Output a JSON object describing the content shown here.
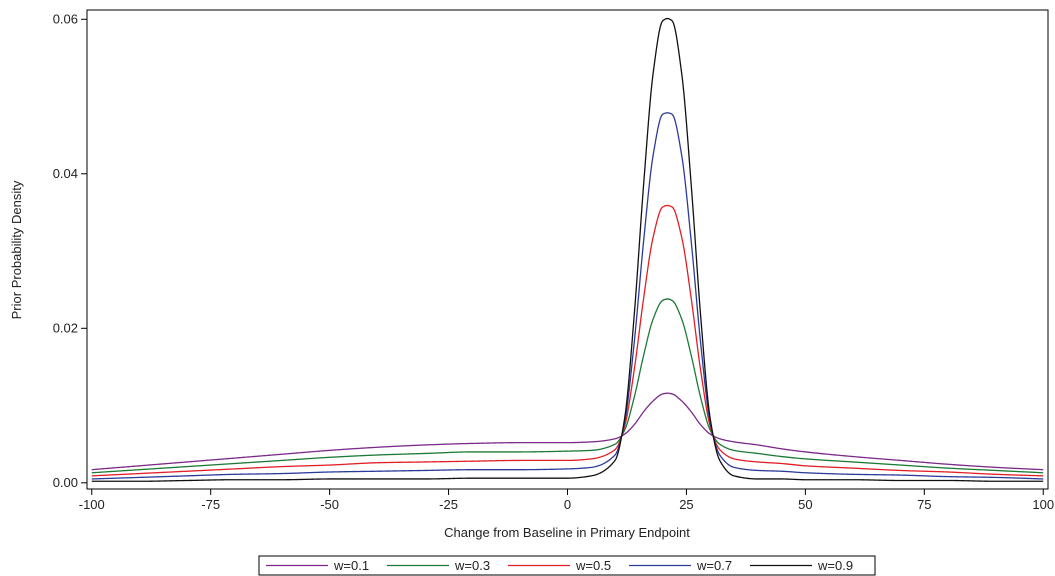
{
  "chart_data": {
    "type": "line",
    "title": "",
    "xlabel": "Change from Baseline in Primary Endpoint",
    "ylabel": "Prior Probability Density",
    "xlim": [
      -101,
      101
    ],
    "ylim": [
      -0.0008,
      0.0612
    ],
    "x_ticks": [
      -100,
      -75,
      -50,
      -25,
      0,
      25,
      50,
      75,
      100
    ],
    "x_tick_labels": [
      "-100",
      "-75",
      "-50",
      "-25",
      "0",
      "25",
      "50",
      "75",
      "100"
    ],
    "y_ticks": [
      0,
      0.02,
      0.04,
      0.06
    ],
    "y_tick_labels": [
      "0.00",
      "0.02",
      "0.04",
      "0.06"
    ],
    "grid": false,
    "legend_position": "bottom",
    "x": [
      -100,
      -90,
      -80,
      -70,
      -60,
      -50,
      -40,
      -30,
      -20,
      -10,
      0,
      5,
      10,
      12,
      14,
      16,
      18,
      20,
      21,
      22,
      24,
      26,
      28,
      30,
      32,
      35,
      40,
      45,
      50,
      60,
      70,
      80,
      90,
      100
    ],
    "series": [
      {
        "name": "w=0.1",
        "color": "#7b2a8a",
        "values": [
          0.0017,
          0.0022,
          0.0027,
          0.0032,
          0.0037,
          0.0042,
          0.0046,
          0.0049,
          0.0051,
          0.0052,
          0.0052,
          0.0053,
          0.0057,
          0.0063,
          0.0075,
          0.0092,
          0.0106,
          0.0115,
          0.0116,
          0.0115,
          0.0106,
          0.0092,
          0.0075,
          0.0063,
          0.0057,
          0.0053,
          0.0049,
          0.0044,
          0.004,
          0.0034,
          0.0029,
          0.0024,
          0.002,
          0.0017
        ]
      },
      {
        "name": "w=0.3",
        "color": "#1d7a36",
        "values": [
          0.0013,
          0.0017,
          0.0021,
          0.0025,
          0.0029,
          0.0033,
          0.0036,
          0.0038,
          0.004,
          0.004,
          0.0041,
          0.0042,
          0.005,
          0.0068,
          0.011,
          0.0165,
          0.0212,
          0.0236,
          0.0238,
          0.0236,
          0.0212,
          0.0165,
          0.011,
          0.0068,
          0.005,
          0.0042,
          0.0038,
          0.0034,
          0.0031,
          0.0027,
          0.0023,
          0.0019,
          0.0016,
          0.0013
        ]
      },
      {
        "name": "w=0.5",
        "color": "#e11f26",
        "values": [
          0.0009,
          0.0012,
          0.0015,
          0.0018,
          0.0021,
          0.0023,
          0.0026,
          0.0027,
          0.0028,
          0.0029,
          0.0029,
          0.0031,
          0.0043,
          0.0073,
          0.0145,
          0.0239,
          0.0318,
          0.0357,
          0.0359,
          0.0357,
          0.0318,
          0.0239,
          0.0145,
          0.0073,
          0.0043,
          0.0031,
          0.0027,
          0.0025,
          0.0022,
          0.0019,
          0.0016,
          0.0014,
          0.0011,
          0.0009
        ]
      },
      {
        "name": "w=0.7",
        "color": "#2b3b9a",
        "values": [
          0.0005,
          0.0007,
          0.0009,
          0.0011,
          0.0012,
          0.0014,
          0.0015,
          0.0016,
          0.0017,
          0.0017,
          0.0018,
          0.002,
          0.0036,
          0.0078,
          0.018,
          0.0313,
          0.0424,
          0.0477,
          0.0479,
          0.0477,
          0.0424,
          0.0313,
          0.018,
          0.0078,
          0.0036,
          0.002,
          0.0016,
          0.0015,
          0.0013,
          0.0011,
          0.001,
          0.0008,
          0.0007,
          0.0005
        ]
      },
      {
        "name": "w=0.9",
        "color": "#111111",
        "values": [
          0.0002,
          0.0002,
          0.0003,
          0.0004,
          0.0004,
          0.0005,
          0.0005,
          0.0005,
          0.0006,
          0.0006,
          0.0006,
          0.0009,
          0.0029,
          0.0083,
          0.0215,
          0.0386,
          0.053,
          0.0598,
          0.0601,
          0.0598,
          0.053,
          0.0386,
          0.0215,
          0.0083,
          0.0029,
          0.0009,
          0.0005,
          0.0005,
          0.0004,
          0.0004,
          0.0003,
          0.0003,
          0.0002,
          0.0002
        ]
      }
    ]
  }
}
